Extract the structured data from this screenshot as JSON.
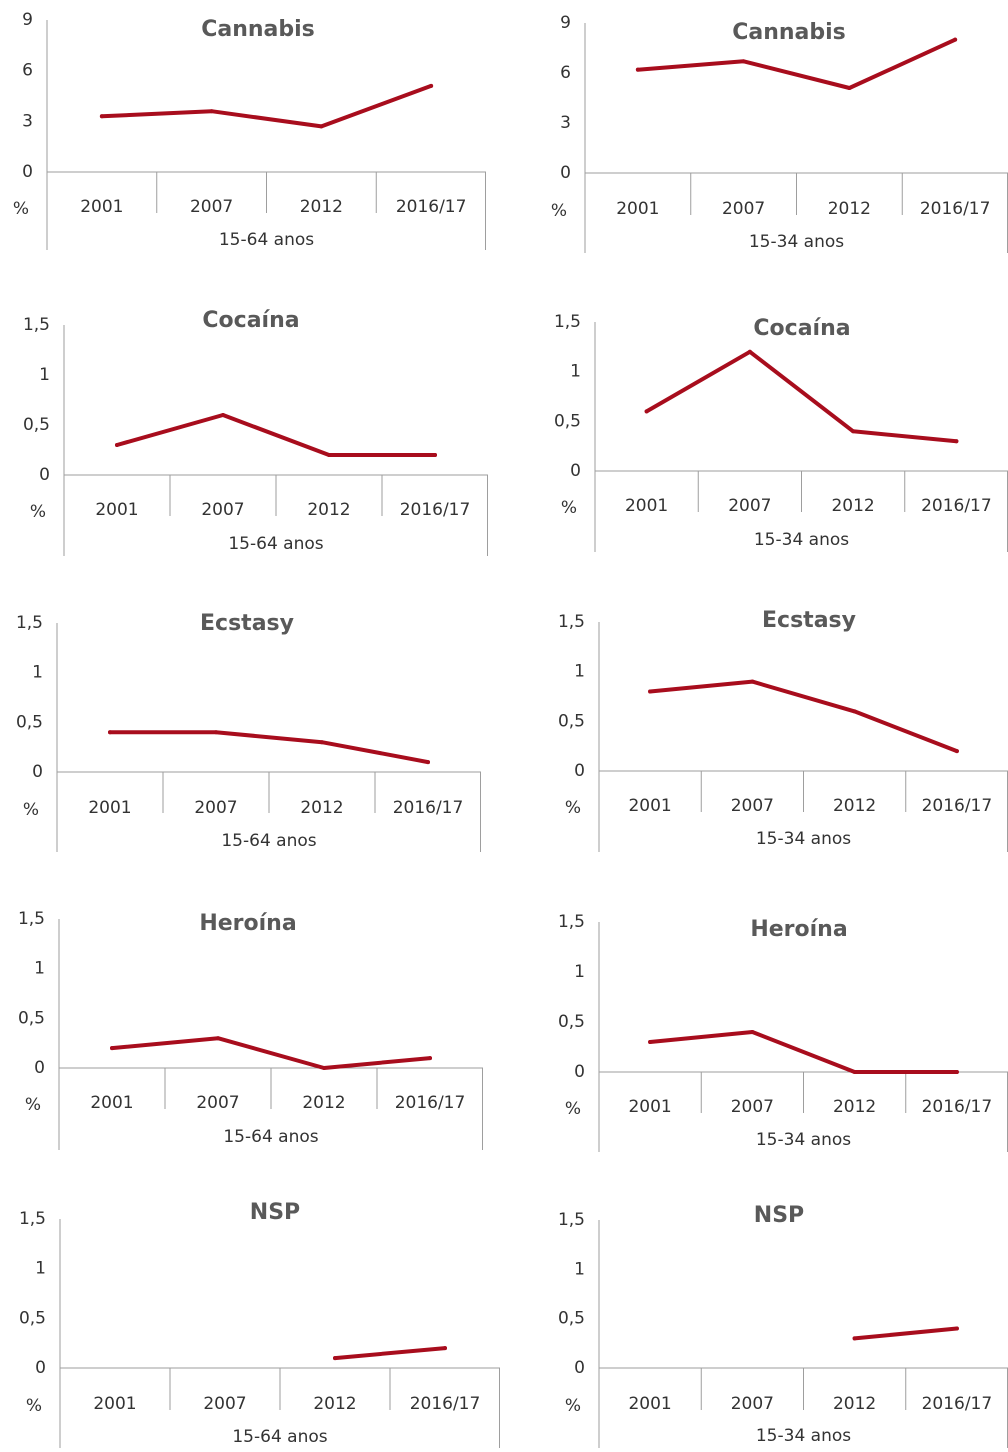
{
  "style": {
    "line_color": "#A80D1D",
    "axis_color": "#9e9e9e",
    "text_color": "#333333",
    "title_color": "#595959"
  },
  "chart_data": [
    {
      "type": "line",
      "title": "Cannabis",
      "unit": "%",
      "group_label": "15-64 anos",
      "categories": [
        "2001",
        "2007",
        "2012",
        "2016/17"
      ],
      "ylim": [
        0,
        9
      ],
      "yticks": [
        "0",
        "3",
        "6",
        "9"
      ],
      "series": [
        {
          "values": [
            3.3,
            3.6,
            2.7,
            5.1
          ]
        }
      ]
    },
    {
      "type": "line",
      "title": "Cannabis",
      "unit": "%",
      "group_label": "15-34 anos",
      "categories": [
        "2001",
        "2007",
        "2012",
        "2016/17"
      ],
      "ylim": [
        0,
        9
      ],
      "yticks": [
        "0",
        "3",
        "6",
        "9"
      ],
      "series": [
        {
          "values": [
            6.2,
            6.7,
            5.1,
            8.0
          ]
        }
      ]
    },
    {
      "type": "line",
      "title": "Cocaína",
      "unit": "%",
      "group_label": "15-64 anos",
      "categories": [
        "2001",
        "2007",
        "2012",
        "2016/17"
      ],
      "ylim": [
        0,
        1.5
      ],
      "yticks": [
        "0",
        "0,5",
        "1",
        "1,5"
      ],
      "series": [
        {
          "values": [
            0.3,
            0.6,
            0.2,
            0.2
          ]
        }
      ]
    },
    {
      "type": "line",
      "title": "Cocaína",
      "unit": "%",
      "group_label": "15-34 anos",
      "categories": [
        "2001",
        "2007",
        "2012",
        "2016/17"
      ],
      "ylim": [
        0,
        1.5
      ],
      "yticks": [
        "0",
        "0,5",
        "1",
        "1,5"
      ],
      "series": [
        {
          "values": [
            0.6,
            1.2,
            0.4,
            0.3
          ]
        }
      ]
    },
    {
      "type": "line",
      "title": "Ecstasy",
      "unit": "%",
      "group_label": "15-64 anos",
      "categories": [
        "2001",
        "2007",
        "2012",
        "2016/17"
      ],
      "ylim": [
        0,
        1.5
      ],
      "yticks": [
        "0",
        "0,5",
        "1",
        "1,5"
      ],
      "series": [
        {
          "values": [
            0.4,
            0.4,
            0.3,
            0.1
          ]
        }
      ]
    },
    {
      "type": "line",
      "title": "Ecstasy",
      "unit": "%",
      "group_label": "15-34 anos",
      "categories": [
        "2001",
        "2007",
        "2012",
        "2016/17"
      ],
      "ylim": [
        0,
        1.5
      ],
      "yticks": [
        "0",
        "0,5",
        "1",
        "1,5"
      ],
      "series": [
        {
          "values": [
            0.8,
            0.9,
            0.6,
            0.2
          ]
        }
      ]
    },
    {
      "type": "line",
      "title": "Heroína",
      "unit": "%",
      "group_label": "15-64 anos",
      "categories": [
        "2001",
        "2007",
        "2012",
        "2016/17"
      ],
      "ylim": [
        0,
        1.5
      ],
      "yticks": [
        "0",
        "0,5",
        "1",
        "1,5"
      ],
      "series": [
        {
          "values": [
            0.2,
            0.3,
            0.0,
            0.1
          ]
        }
      ]
    },
    {
      "type": "line",
      "title": "Heroína",
      "unit": "%",
      "group_label": "15-34 anos",
      "categories": [
        "2001",
        "2007",
        "2012",
        "2016/17"
      ],
      "ylim": [
        0,
        1.5
      ],
      "yticks": [
        "0",
        "0,5",
        "1",
        "1,5"
      ],
      "series": [
        {
          "values": [
            0.3,
            0.4,
            0.0,
            0.0
          ]
        }
      ]
    },
    {
      "type": "line",
      "title": "NSP",
      "unit": "%",
      "group_label": "15-64 anos",
      "categories": [
        "2001",
        "2007",
        "2012",
        "2016/17"
      ],
      "ylim": [
        0,
        1.5
      ],
      "yticks": [
        "0",
        "0,5",
        "1",
        "1,5"
      ],
      "series": [
        {
          "values": [
            null,
            null,
            0.1,
            0.2
          ]
        }
      ]
    },
    {
      "type": "line",
      "title": "NSP",
      "unit": "%",
      "group_label": "15-34 anos",
      "categories": [
        "2001",
        "2007",
        "2012",
        "2016/17"
      ],
      "ylim": [
        0,
        1.5
      ],
      "yticks": [
        "0",
        "0,5",
        "1",
        "1,5"
      ],
      "series": [
        {
          "values": [
            null,
            null,
            0.3,
            0.4
          ]
        }
      ]
    }
  ]
}
